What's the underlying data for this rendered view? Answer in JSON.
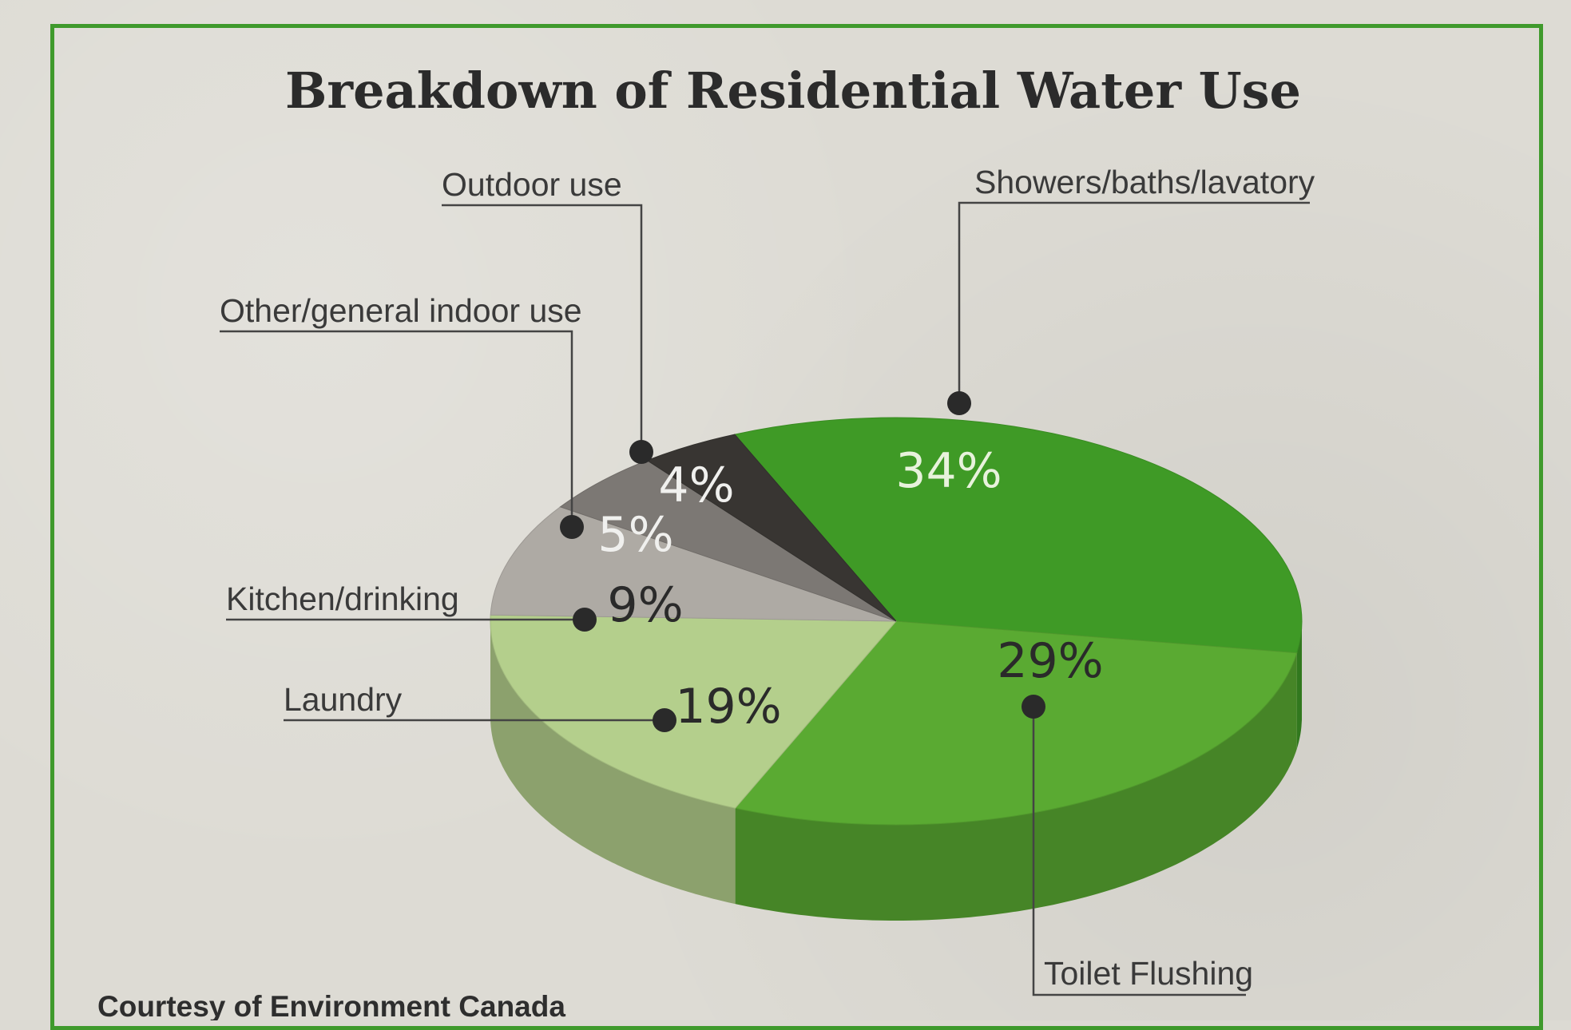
{
  "chart_data": {
    "type": "pie",
    "title": "Breakdown of Residential Water Use",
    "source": "Courtesy of Environment Canada",
    "slices": [
      {
        "label": "Showers/baths/lavatory",
        "value": 34,
        "display": "34%",
        "color": "#3f9a26"
      },
      {
        "label": "Toilet Flushing",
        "value": 29,
        "display": "29%",
        "color": "#5aaa32"
      },
      {
        "label": "Laundry",
        "value": 19,
        "display": "19%",
        "color": "#b4cf8c"
      },
      {
        "label": "Kitchen/drinking",
        "value": 9,
        "display": "9%",
        "color": "#aeaaa4"
      },
      {
        "label": "Other/general indoor use",
        "value": 5,
        "display": "5%",
        "color": "#7c7874"
      },
      {
        "label": "Outdoor use",
        "value": 4,
        "display": "4%",
        "color": "#383532"
      }
    ]
  }
}
